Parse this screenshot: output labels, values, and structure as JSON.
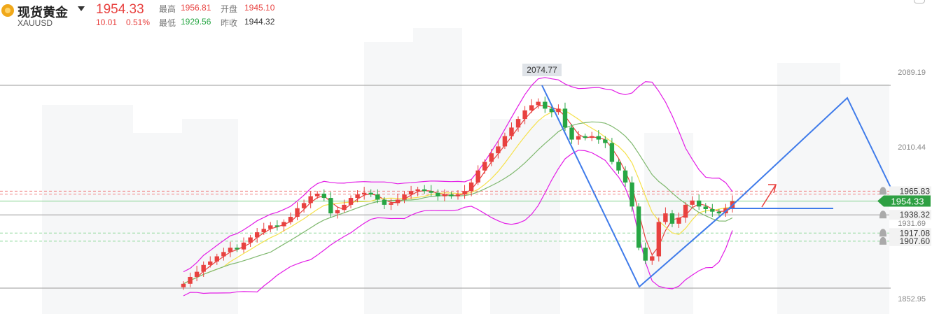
{
  "header": {
    "name": "现货黄金",
    "symbol": "XAUUSD",
    "price": "1954.33",
    "change": "10.01",
    "change_pct": "0.51%",
    "high_label": "最高",
    "high": "1956.81",
    "low_label": "最低",
    "low": "1929.56",
    "open_label": "开盘",
    "open": "1945.10",
    "prev_label": "昨收",
    "prev_close": "1944.32"
  },
  "colors": {
    "up": "#e8413f",
    "down": "#27a644",
    "boll": "#e31ee6",
    "ma_fast": "#e8413f",
    "ma_mid": "#f5e14a",
    "ma_slow": "#7fb86e",
    "drawing": "#3f7bea"
  },
  "chart_data": {
    "type": "candlestick",
    "y_axis_ticks": [
      "2089.19",
      "2010.44",
      "1931.69",
      "1852.95"
    ],
    "price_levels": [
      {
        "value": 2089.19,
        "label": "2089.19",
        "style": "solid-gray"
      },
      {
        "value": 1965.83,
        "label": "1965.83",
        "style": "dashed-red"
      },
      {
        "value": 1954.33,
        "label": "1954.33",
        "style": "current-green"
      },
      {
        "value": 1938.32,
        "label": "1938.32",
        "style": "solid-gray"
      },
      {
        "value": 1917.08,
        "label": "1917.08",
        "style": "dashed-green"
      },
      {
        "value": 1907.6,
        "label": "1907.60",
        "style": "dashed-green"
      },
      {
        "value": 1852.95,
        "label": "1852.95",
        "style": "solid-gray"
      }
    ],
    "annotation_high": "2074.77",
    "close_series": [
      1858,
      1866,
      1872,
      1880,
      1884,
      1890,
      1895,
      1900,
      1898,
      1906,
      1912,
      1918,
      1922,
      1926,
      1925,
      1930,
      1936,
      1946,
      1952,
      1960,
      1963,
      1958,
      1940,
      1944,
      1950,
      1958,
      1962,
      1964,
      1962,
      1956,
      1950,
      1952,
      1956,
      1962,
      1966,
      1968,
      1966,
      1964,
      1960,
      1962,
      1960,
      1962,
      1966,
      1976,
      1990,
      2000,
      2010,
      2018,
      2030,
      2040,
      2050,
      2060,
      2066,
      2070,
      2062,
      2058,
      2062,
      2040,
      2026,
      2030,
      2028,
      2030,
      2026,
      2022,
      2000,
      1990,
      1976,
      1948,
      1900,
      1885,
      1890,
      1930,
      1940,
      1928,
      1935,
      1950,
      1955,
      1948,
      1945,
      1942,
      1940,
      1946,
      1954
    ],
    "bands": {
      "upper_note": "Bollinger upper/lower bands shown in magenta",
      "ma_note": "moving averages in red, yellow, green"
    }
  }
}
